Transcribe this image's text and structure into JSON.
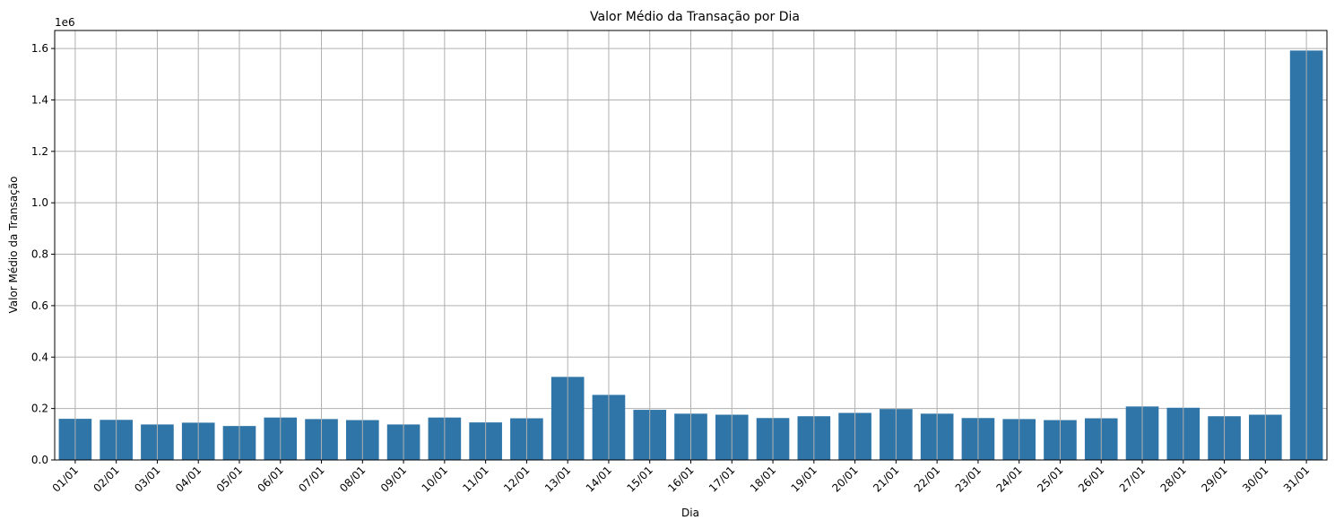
{
  "chart_data": {
    "type": "bar",
    "title": "Valor Médio da Transação por Dia",
    "xlabel": "Dia",
    "ylabel": "Valor Médio da Transação",
    "y_scale_label": "1e6",
    "ylim": [
      0,
      1.67
    ],
    "yticks": [
      0.0,
      0.2,
      0.4,
      0.6,
      0.8,
      1.0,
      1.2,
      1.4,
      1.6
    ],
    "ytick_labels": [
      "0.0",
      "0.2",
      "0.4",
      "0.6",
      "0.8",
      "1.0",
      "1.2",
      "1.4",
      "1.6"
    ],
    "grid": true,
    "bar_color": "#2f75a8",
    "categories": [
      "01/01",
      "02/01",
      "03/01",
      "04/01",
      "05/01",
      "06/01",
      "07/01",
      "08/01",
      "09/01",
      "10/01",
      "11/01",
      "12/01",
      "13/01",
      "14/01",
      "15/01",
      "16/01",
      "17/01",
      "18/01",
      "19/01",
      "20/01",
      "21/01",
      "22/01",
      "23/01",
      "24/01",
      "25/01",
      "26/01",
      "27/01",
      "28/01",
      "29/01",
      "30/01",
      "31/01"
    ],
    "values": [
      0.16,
      0.156,
      0.138,
      0.145,
      0.132,
      0.165,
      0.159,
      0.155,
      0.138,
      0.165,
      0.146,
      0.162,
      0.323,
      0.253,
      0.195,
      0.18,
      0.176,
      0.163,
      0.17,
      0.183,
      0.198,
      0.18,
      0.163,
      0.159,
      0.155,
      0.162,
      0.208,
      0.203,
      0.17,
      0.176,
      1.592
    ]
  }
}
